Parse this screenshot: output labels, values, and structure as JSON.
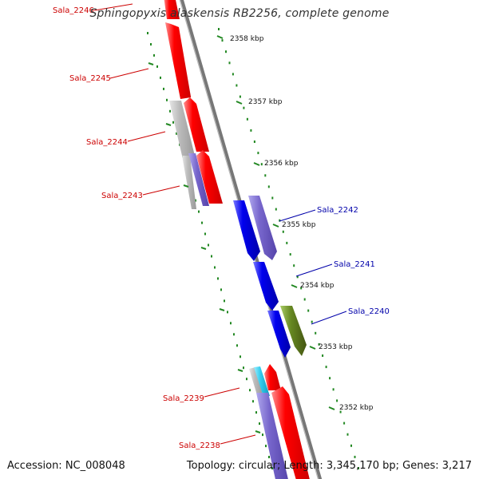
{
  "title": "Sphingopyxis alaskensis RB2256, complete genome",
  "footer": {
    "accession": "Accession: NC_008048",
    "summary": "Topology: circular; Length: 3,345,170 bp; Genes: 3,217"
  },
  "colors": {
    "red": "#ff0000",
    "blue": "#0000ee",
    "purple": "#7766cc",
    "olive": "#668822",
    "cyan": "#33ccee",
    "grey": "#bbbbbb",
    "backbone": "#777777",
    "tick": "#228822",
    "label_red": "#cc0000",
    "label_blue": "#0000aa"
  },
  "ticks": [
    "2358 kbp",
    "2357 kbp",
    "2356 kbp",
    "2355 kbp",
    "2354 kbp",
    "2353 kbp",
    "2352 kbp"
  ],
  "genes": [
    {
      "label": "Sala_2246",
      "strand": "reverse"
    },
    {
      "label": "Sala_2245",
      "strand": "reverse"
    },
    {
      "label": "Sala_2244",
      "strand": "reverse"
    },
    {
      "label": "Sala_2243",
      "strand": "reverse"
    },
    {
      "label": "Sala_2242",
      "strand": "forward"
    },
    {
      "label": "Sala_2241",
      "strand": "forward"
    },
    {
      "label": "Sala_2240",
      "strand": "forward"
    },
    {
      "label": "Sala_2239",
      "strand": "reverse"
    },
    {
      "label": "Sala_2238",
      "strand": "reverse"
    }
  ]
}
